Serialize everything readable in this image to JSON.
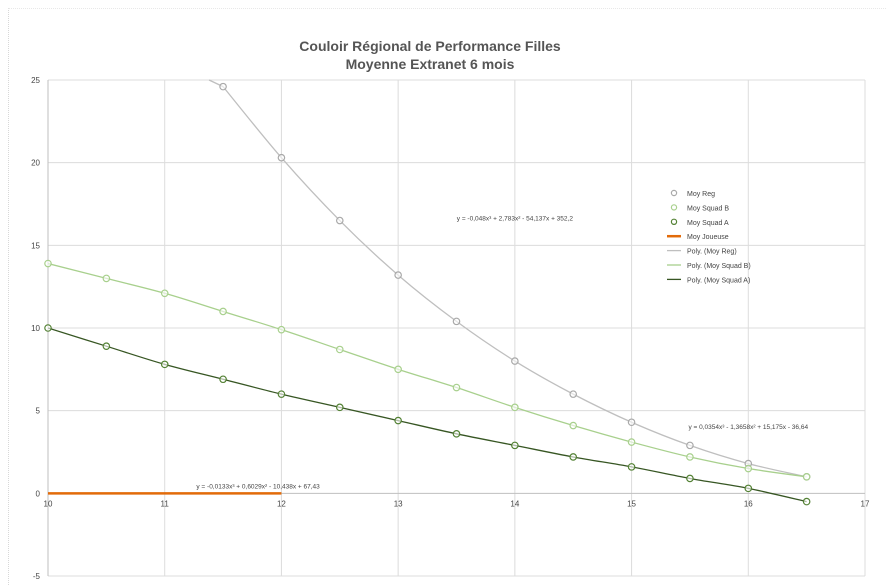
{
  "chart_data": {
    "type": "scatter",
    "title": "Couloir Régional de Performance Filles",
    "subtitle": "Moyenne Extranet 6 mois",
    "xlabel": "",
    "ylabel": "",
    "xlim": [
      10,
      17
    ],
    "ylim": [
      -5,
      25
    ],
    "x_ticks": [
      "10",
      "11",
      "12",
      "13",
      "14",
      "15",
      "16",
      "17"
    ],
    "y_ticks": [
      "25",
      "20",
      "15",
      "10",
      "5",
      "0",
      "-5"
    ],
    "grid": true,
    "legend_position": "right",
    "x": [
      10,
      10.5,
      11,
      11.5,
      12,
      12.5,
      13,
      13.5,
      14,
      14.5,
      15,
      15.5,
      16,
      16.5
    ],
    "series": [
      {
        "name": "Moy Reg",
        "color": "#a9a9a9",
        "kind": "markers",
        "values": [
          null,
          null,
          null,
          24.6,
          20.3,
          16.5,
          13.2,
          10.4,
          8.0,
          6.0,
          4.3,
          2.9,
          1.8,
          1.0
        ]
      },
      {
        "name": "Moy Squad B",
        "color": "#a8d08d",
        "kind": "markers",
        "values": [
          13.9,
          13.0,
          12.1,
          11.0,
          9.9,
          8.7,
          7.5,
          6.4,
          5.2,
          4.1,
          3.1,
          2.2,
          1.5,
          1.0
        ]
      },
      {
        "name": "Moy Squad A",
        "color": "#548235",
        "kind": "markers",
        "values": [
          10.0,
          8.9,
          7.8,
          6.9,
          6.0,
          5.2,
          4.4,
          3.6,
          2.9,
          2.2,
          1.6,
          0.9,
          0.3,
          -0.5
        ]
      },
      {
        "name": "Moy Joueuse",
        "color": "#e26b0a",
        "kind": "line",
        "points": [
          [
            10,
            0
          ],
          [
            12,
            0
          ]
        ]
      },
      {
        "name": "Poly. (Moy Reg)",
        "color": "#bfbfbf",
        "kind": "trend",
        "of": "Moy Reg"
      },
      {
        "name": "Poly. (Moy Squad B)",
        "color": "#a8d08d",
        "kind": "trend",
        "of": "Moy Squad B"
      },
      {
        "name": "Poly. (Moy Squad A)",
        "color": "#375623",
        "kind": "trend",
        "of": "Moy Squad A"
      }
    ],
    "annotations": [
      {
        "text": "y = -0,048x³ + 2,783x² - 54,137x + 352,2",
        "x": 14.0,
        "y": 16.5
      },
      {
        "text": "y = 0,0354x³ - 1,3658x² + 15,175x - 36,64",
        "x": 16.0,
        "y": 3.9
      },
      {
        "text": "y = -0,0133x³ + 0,6029x² - 10,438x + 67,43",
        "x": 11.8,
        "y": 0.3
      }
    ]
  }
}
